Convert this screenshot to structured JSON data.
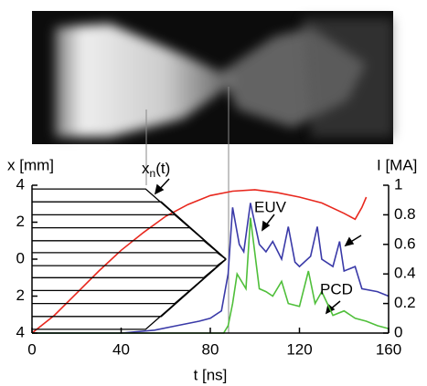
{
  "chart_data": {
    "type": "line",
    "x_label": "t [ns]",
    "y_label": "x [mm]",
    "y2_label": "I [MA]",
    "xlim": [
      0,
      160
    ],
    "xticks": [
      0,
      40,
      80,
      120,
      160
    ],
    "ylim": [
      -4,
      4
    ],
    "yticks": [
      {
        "value": -4,
        "label": "4"
      },
      {
        "value": -2,
        "label": "2"
      },
      0,
      2,
      4
    ],
    "y2lim": [
      0,
      1
    ],
    "y2ticks": [
      0,
      0.2,
      0.4,
      0.6,
      0.8,
      1
    ],
    "annotations": [
      {
        "text": "EUV",
        "color": "#3a3aa8"
      },
      {
        "text": "PCD",
        "color": "#4fbf3a"
      }
    ],
    "trajectory_label": {
      "base": "x",
      "sub": "n",
      "rest": "(t)"
    },
    "series": [
      {
        "color": "#e8281e",
        "axis": "y2",
        "x": [
          0,
          10,
          20,
          30,
          40,
          50,
          60,
          70,
          80,
          90,
          100,
          110,
          120,
          130,
          140,
          145,
          148,
          150
        ],
        "values": [
          0,
          0.12,
          0.27,
          0.42,
          0.56,
          0.68,
          0.79,
          0.87,
          0.93,
          0.96,
          0.97,
          0.95,
          0.92,
          0.88,
          0.81,
          0.77,
          0.85,
          0.92
        ]
      },
      {
        "color": "#3a3aa8",
        "axis": "y2",
        "x": [
          0,
          40,
          55,
          65,
          75,
          80,
          85,
          88,
          90,
          93,
          95,
          98,
          102,
          105,
          108,
          112,
          115,
          118,
          120,
          125,
          128,
          130,
          135,
          138,
          140,
          145,
          148,
          155,
          160
        ],
        "values": [
          0,
          0,
          0.02,
          0.05,
          0.08,
          0.1,
          0.15,
          0.4,
          0.85,
          0.6,
          0.55,
          0.88,
          0.6,
          0.55,
          0.62,
          0.5,
          0.72,
          0.48,
          0.45,
          0.52,
          0.72,
          0.5,
          0.45,
          0.62,
          0.42,
          0.45,
          0.3,
          0.28,
          0.25
        ]
      },
      {
        "color": "#4fbf3a",
        "axis": "y2",
        "x": [
          0,
          86,
          88,
          90,
          92,
          96,
          98,
          102,
          105,
          108,
          112,
          115,
          120,
          124,
          127,
          130,
          135,
          140,
          145,
          150,
          155,
          160
        ],
        "values": [
          0,
          0,
          0.05,
          0.2,
          0.4,
          0.3,
          0.78,
          0.3,
          0.28,
          0.25,
          0.35,
          0.2,
          0.18,
          0.42,
          0.2,
          0.28,
          0.12,
          0.15,
          0.1,
          0.08,
          0.05,
          0.03
        ]
      },
      {
        "color": "#000000",
        "x": [
          0,
          51,
          87
        ],
        "values": [
          3.8,
          3.8,
          0
        ]
      },
      {
        "color": "#000000",
        "x": [
          0,
          58,
          87
        ],
        "values": [
          3.1,
          3.1,
          0
        ]
      },
      {
        "color": "#000000",
        "x": [
          0,
          64,
          87
        ],
        "values": [
          2.4,
          2.4,
          0
        ]
      },
      {
        "color": "#000000",
        "x": [
          0,
          71,
          87
        ],
        "values": [
          1.7,
          1.7,
          0
        ]
      },
      {
        "color": "#000000",
        "x": [
          0,
          77,
          87
        ],
        "values": [
          1.0,
          1.0,
          0
        ]
      },
      {
        "color": "#000000",
        "x": [
          0,
          83,
          87
        ],
        "values": [
          0.35,
          0.35,
          0
        ]
      },
      {
        "color": "#000000",
        "x": [
          0,
          83,
          87
        ],
        "values": [
          -0.35,
          -0.35,
          0
        ]
      },
      {
        "color": "#000000",
        "x": [
          0,
          77,
          87
        ],
        "values": [
          -1.0,
          -1.0,
          0
        ]
      },
      {
        "color": "#000000",
        "x": [
          0,
          71,
          87
        ],
        "values": [
          -1.7,
          -1.7,
          0
        ]
      },
      {
        "color": "#000000",
        "x": [
          0,
          64,
          87
        ],
        "values": [
          -2.4,
          -2.4,
          0
        ]
      },
      {
        "color": "#000000",
        "x": [
          0,
          58,
          87
        ],
        "values": [
          -3.1,
          -3.1,
          0
        ]
      },
      {
        "color": "#000000",
        "x": [
          0,
          51,
          87
        ],
        "values": [
          -3.8,
          -3.8,
          0
        ]
      }
    ]
  }
}
